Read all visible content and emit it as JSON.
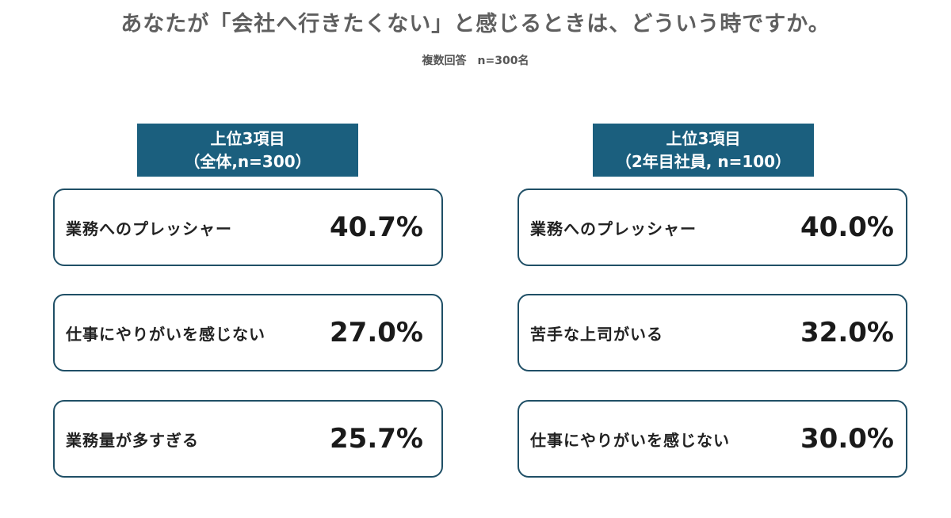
{
  "title": "あなたが「会社へ行きたくない」と感じるときは、どういう時ですか。",
  "subtitle": "複数回答　n=300名",
  "chart_data": [
    {
      "type": "table",
      "header_line1": "上位3項目",
      "header_line2": "（全体,n=300）",
      "rows": [
        {
          "label": "業務へのプレッシャー",
          "value": "40.7%"
        },
        {
          "label": "仕事にやりがいを感じない",
          "value": "27.0%"
        },
        {
          "label": "業務量が多すぎる",
          "value": "25.7%"
        }
      ]
    },
    {
      "type": "table",
      "header_line1": "上位3項目",
      "header_line2": "（2年目社員, n=100）",
      "rows": [
        {
          "label": "業務へのプレッシャー",
          "value": "40.0%"
        },
        {
          "label": "苦手な上司がいる",
          "value": "32.0%"
        },
        {
          "label": "仕事にやりがいを感じない",
          "value": "30.0%"
        }
      ]
    }
  ],
  "colors": {
    "header_bg": "#1b5f7e",
    "box_border": "#1f4f66",
    "title_text": "#5f5f5f"
  }
}
